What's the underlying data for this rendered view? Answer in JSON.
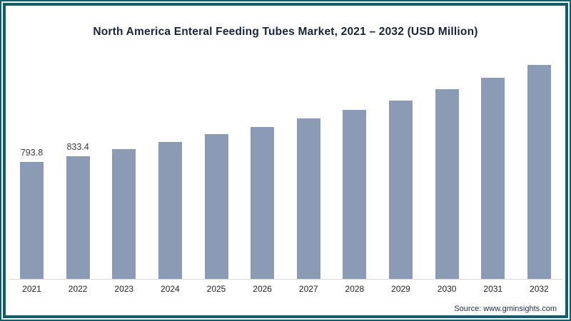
{
  "frame": {
    "border_color": "#0e5f6b"
  },
  "chart_data": {
    "type": "bar",
    "title": "North America Enteral Feeding Tubes Market, 2021 – 2032 (USD Million)",
    "categories": [
      "2021",
      "2022",
      "2023",
      "2024",
      "2025",
      "2026",
      "2027",
      "2028",
      "2029",
      "2030",
      "2031",
      "2032"
    ],
    "values": [
      793.8,
      833.4,
      880,
      929,
      981,
      1034,
      1090,
      1150,
      1213,
      1288,
      1368,
      1452
    ],
    "value_labels": [
      "793.8",
      "833.4",
      "",
      "",
      "",
      "",
      "",
      "",
      "",
      "",
      "",
      ""
    ],
    "bar_color": "#8c9bb5",
    "xlabel": "",
    "ylabel": "",
    "ylim": [
      0,
      1550
    ],
    "grid": false,
    "legend": "none",
    "baseline_axis": true
  },
  "source": {
    "label": "Source: www.gminsights.com"
  }
}
